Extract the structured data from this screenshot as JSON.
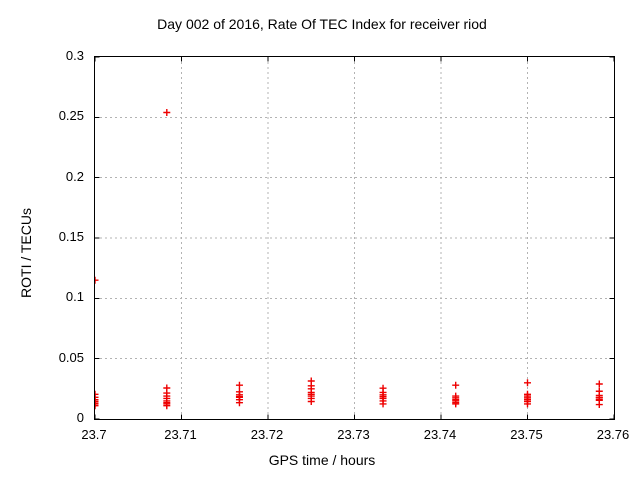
{
  "chart_data": {
    "type": "scatter",
    "title": "Day 002 of 2016, Rate Of TEC Index for receiver riod",
    "xlabel": "GPS time / hours",
    "ylabel": "ROTI / TECUs",
    "xlim": [
      23.7,
      23.76
    ],
    "ylim": [
      0,
      0.3
    ],
    "xticks": [
      23.7,
      23.71,
      23.72,
      23.73,
      23.74,
      23.75,
      23.76
    ],
    "xtick_labels": [
      "23.7",
      "23.71",
      "23.72",
      "23.73",
      "23.74",
      "23.75",
      "23.76"
    ],
    "yticks": [
      0,
      0.05,
      0.1,
      0.15,
      0.2,
      0.25,
      0.3
    ],
    "ytick_labels": [
      "0",
      "0.05",
      "0.1",
      "0.15",
      "0.2",
      "0.25",
      "0.3"
    ],
    "grid": true,
    "legend": "none",
    "marker": "plus",
    "marker_color": "#ee0000",
    "grid_color": "#b3b3b3",
    "frame_color": "#000000",
    "background_color": "#ffffff",
    "series": [
      {
        "name": "ROTI",
        "points": [
          [
            23.7,
            0.115
          ],
          [
            23.7,
            0.0205
          ],
          [
            23.7,
            0.018
          ],
          [
            23.7,
            0.016
          ],
          [
            23.7,
            0.0145
          ],
          [
            23.7,
            0.013
          ],
          [
            23.7,
            0.0125
          ],
          [
            23.7,
            0.011
          ],
          [
            23.7083,
            0.254
          ],
          [
            23.7083,
            0.0257
          ],
          [
            23.7083,
            0.0215
          ],
          [
            23.7083,
            0.019
          ],
          [
            23.7083,
            0.017
          ],
          [
            23.7083,
            0.015
          ],
          [
            23.7083,
            0.0135
          ],
          [
            23.7083,
            0.0125
          ],
          [
            23.7083,
            0.011
          ],
          [
            23.7167,
            0.028
          ],
          [
            23.7167,
            0.0225
          ],
          [
            23.7167,
            0.02
          ],
          [
            23.7167,
            0.0185
          ],
          [
            23.7167,
            0.018
          ],
          [
            23.7167,
            0.016
          ],
          [
            23.7167,
            0.0135
          ],
          [
            23.725,
            0.0315
          ],
          [
            23.725,
            0.0275
          ],
          [
            23.725,
            0.025
          ],
          [
            23.725,
            0.022
          ],
          [
            23.725,
            0.0205
          ],
          [
            23.725,
            0.019
          ],
          [
            23.725,
            0.017
          ],
          [
            23.725,
            0.0145
          ],
          [
            23.7333,
            0.0255
          ],
          [
            23.7333,
            0.022
          ],
          [
            23.7333,
            0.02
          ],
          [
            23.7333,
            0.0185
          ],
          [
            23.7333,
            0.017
          ],
          [
            23.7333,
            0.015
          ],
          [
            23.7333,
            0.0125
          ],
          [
            23.7417,
            0.028
          ],
          [
            23.7417,
            0.019
          ],
          [
            23.7417,
            0.0175
          ],
          [
            23.7417,
            0.016
          ],
          [
            23.7417,
            0.015
          ],
          [
            23.7417,
            0.0135
          ],
          [
            23.7417,
            0.0125
          ],
          [
            23.75,
            0.03
          ],
          [
            23.75,
            0.0205
          ],
          [
            23.75,
            0.019
          ],
          [
            23.75,
            0.0175
          ],
          [
            23.75,
            0.016
          ],
          [
            23.75,
            0.0145
          ],
          [
            23.75,
            0.0125
          ],
          [
            23.7583,
            0.029
          ],
          [
            23.7583,
            0.023
          ],
          [
            23.7583,
            0.0195
          ],
          [
            23.7583,
            0.018
          ],
          [
            23.7583,
            0.0175
          ],
          [
            23.7583,
            0.016
          ],
          [
            23.7583,
            0.0155
          ],
          [
            23.7583,
            0.012
          ]
        ]
      }
    ]
  }
}
